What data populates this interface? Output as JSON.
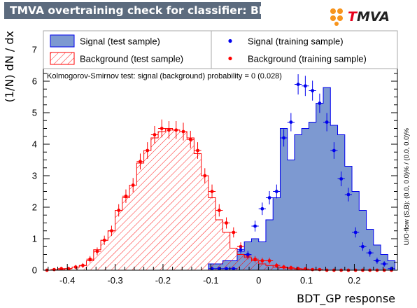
{
  "title": "TMVA overtraining check for classifier: BDT_GP",
  "logo": {
    "text_t": "T",
    "text_rest": "MVA"
  },
  "chart_data": {
    "type": "histogram",
    "xlabel": "BDT_GP response",
    "ylabel": "(1/N) dN / dx",
    "xlim": [
      -0.45,
      0.29
    ],
    "ylim": [
      0,
      7.6
    ],
    "x_ticks": [
      -0.4,
      -0.3,
      -0.2,
      -0.1,
      0,
      0.1,
      0.2
    ],
    "x_tick_labels": [
      "-0.4",
      "-0.3",
      "-0.2",
      "-0.1",
      "0",
      "0.1",
      "0.2"
    ],
    "y_ticks": [
      0,
      1,
      2,
      3,
      4,
      5,
      6,
      7
    ],
    "y_tick_labels": [
      "0",
      "1",
      "2",
      "3",
      "4",
      "5",
      "6",
      "7"
    ],
    "bin_edges": [
      -0.45,
      -0.435,
      -0.42,
      -0.405,
      -0.39,
      -0.375,
      -0.36,
      -0.345,
      -0.33,
      -0.315,
      -0.3,
      -0.285,
      -0.27,
      -0.255,
      -0.24,
      -0.225,
      -0.21,
      -0.195,
      -0.18,
      -0.165,
      -0.15,
      -0.135,
      -0.12,
      -0.105,
      -0.09,
      -0.075,
      -0.06,
      -0.045,
      -0.03,
      -0.015,
      0.0,
      0.015,
      0.03,
      0.045,
      0.06,
      0.075,
      0.09,
      0.105,
      0.12,
      0.135,
      0.15,
      0.165,
      0.18,
      0.195,
      0.21,
      0.225,
      0.24,
      0.255,
      0.27,
      0.285
    ],
    "signal_test": [
      0,
      0,
      0,
      0,
      0,
      0,
      0,
      0,
      0,
      0,
      0,
      0,
      0,
      0,
      0,
      0,
      0,
      0,
      0,
      0,
      0,
      0,
      0,
      0.2,
      0.2,
      0.3,
      0.3,
      0.6,
      0.9,
      1.0,
      0.9,
      1.6,
      2.3,
      4.5,
      3.5,
      4.3,
      4.5,
      4.7,
      5.3,
      5.8,
      4.6,
      4.3,
      3.3,
      2.5,
      1.9,
      1.3,
      0.8,
      0.5,
      0.3
    ],
    "background_test": [
      0,
      0,
      0.02,
      0.05,
      0.1,
      0.15,
      0.3,
      0.65,
      0.95,
      1.25,
      1.9,
      2.3,
      2.7,
      3.4,
      3.8,
      4.2,
      4.4,
      4.5,
      4.45,
      4.4,
      4.2,
      3.7,
      3.0,
      2.3,
      1.6,
      1.2,
      0.7,
      0.5,
      0.4,
      0.3,
      0.2,
      0.15,
      0.1,
      0.08,
      0.05,
      0.03,
      0.02,
      0.01,
      0,
      0,
      0,
      0,
      0,
      0,
      0,
      0,
      0,
      0,
      0
    ],
    "signal_train": [
      null,
      null,
      null,
      null,
      null,
      null,
      null,
      null,
      null,
      null,
      null,
      null,
      null,
      null,
      null,
      null,
      null,
      null,
      null,
      null,
      null,
      null,
      null,
      0.05,
      0.05,
      0.05,
      0.05,
      0.65,
      0.5,
      1.4,
      1.95,
      2.3,
      2.5,
      4.2,
      4.7,
      5.9,
      5.85,
      5.7,
      5.3,
      4.7,
      3.8,
      2.9,
      2.4,
      1.2,
      0.75,
      0.55,
      0.3,
      0.2,
      0.05
    ],
    "background_train": [
      0,
      0.02,
      0.05,
      0.05,
      0.1,
      0.15,
      0.35,
      0.6,
      0.95,
      1.25,
      1.9,
      2.35,
      2.7,
      3.45,
      3.8,
      4.3,
      4.5,
      4.45,
      4.45,
      4.4,
      4.15,
      3.8,
      3.0,
      2.5,
      1.9,
      1.5,
      1.2,
      0.75,
      0.45,
      0.35,
      0.3,
      0.3,
      0.15,
      0.1,
      0.08,
      0.05,
      0.04,
      0.02,
      0.02,
      0,
      0,
      0,
      0,
      0,
      0,
      0,
      0,
      0,
      0
    ],
    "legend": [
      {
        "label": "Signal (test sample)",
        "style": "signal-fill"
      },
      {
        "label": "Signal (training sample)",
        "style": "signal-marker"
      },
      {
        "label": "Background (test sample)",
        "style": "background-hatch"
      },
      {
        "label": "Background (training sample)",
        "style": "background-marker"
      }
    ],
    "ks_text": "Kolmogorov-Smirnov test: signal (background) probability =   0 (0.028)",
    "overflow_text": "U/O-flow (S,B): (0.0, 0.0)% / (0.0, 0.0)%",
    "colors": {
      "signal_fill": "#7d99d1",
      "signal_line": "#0000ee",
      "signal_marker": "#0000ee",
      "background_hatch": "#ff0000",
      "background_marker": "#ff0000",
      "title_bg": "#5c6b7e"
    }
  }
}
